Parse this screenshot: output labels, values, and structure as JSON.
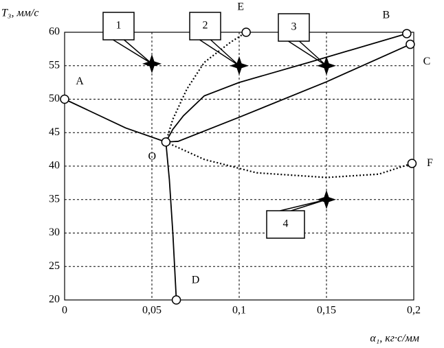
{
  "chart_data": {
    "type": "line",
    "y_label": "T₃, мм/с",
    "x_label": "α₁, кг·с/мм",
    "xlim": [
      0,
      0.2
    ],
    "ylim": [
      20,
      60
    ],
    "xticks": [
      0,
      {
        "value": 0.05,
        "label": "0,05"
      },
      {
        "value": 0.1,
        "label": "0,1"
      },
      {
        "value": 0.15,
        "label": "0,15"
      },
      {
        "value": 0.2,
        "label": "0,2"
      }
    ],
    "yticks": [
      20,
      25,
      30,
      35,
      40,
      45,
      50,
      55,
      60
    ],
    "grid": true,
    "color": "#000000",
    "curves": [
      {
        "style": "solid",
        "x": [
          0,
          0.035,
          0.058
        ],
        "y": [
          50,
          45.7,
          43.6
        ]
      },
      {
        "style": "solid",
        "x": [
          0.058,
          0.06,
          0.062,
          0.064
        ],
        "y": [
          43.6,
          38,
          30,
          20
        ]
      },
      {
        "style": "solid",
        "x": [
          0.058,
          0.062,
          0.068,
          0.08,
          0.1,
          0.14,
          0.196
        ],
        "y": [
          43.6,
          45.5,
          47.5,
          50.5,
          52.5,
          55.5,
          59.8
        ]
      },
      {
        "style": "solid",
        "x": [
          0.058,
          0.065,
          0.1,
          0.15,
          0.198
        ],
        "y": [
          43.6,
          43.7,
          47.3,
          52.6,
          58.2
        ]
      },
      {
        "style": "dotted",
        "x": [
          0.058,
          0.062,
          0.07,
          0.08,
          0.095,
          0.104
        ],
        "y": [
          43.6,
          47,
          51.5,
          55.5,
          58.5,
          60
        ]
      },
      {
        "style": "dotted",
        "x": [
          0.058,
          0.08,
          0.11,
          0.15,
          0.18,
          0.199
        ],
        "y": [
          43.6,
          41,
          39,
          38.3,
          38.8,
          40.4
        ]
      }
    ],
    "points": [
      {
        "label": "A",
        "x": 0,
        "y": 50
      },
      {
        "label": "O",
        "x": 0.058,
        "y": 43.6
      },
      {
        "label": "B",
        "x": 0.196,
        "y": 59.8
      },
      {
        "label": "C",
        "x": 0.198,
        "y": 58.2
      },
      {
        "label": "D",
        "x": 0.064,
        "y": 20
      },
      {
        "label": "E",
        "x": 0.104,
        "y": 60
      },
      {
        "label": "F",
        "x": 0.199,
        "y": 40.4
      }
    ],
    "markers": [
      {
        "label": "1",
        "x": 0.05,
        "y": 55.3
      },
      {
        "label": "2",
        "x": 0.1,
        "y": 55
      },
      {
        "label": "3",
        "x": 0.15,
        "y": 55
      },
      {
        "label": "4",
        "x": 0.15,
        "y": 35
      }
    ]
  }
}
